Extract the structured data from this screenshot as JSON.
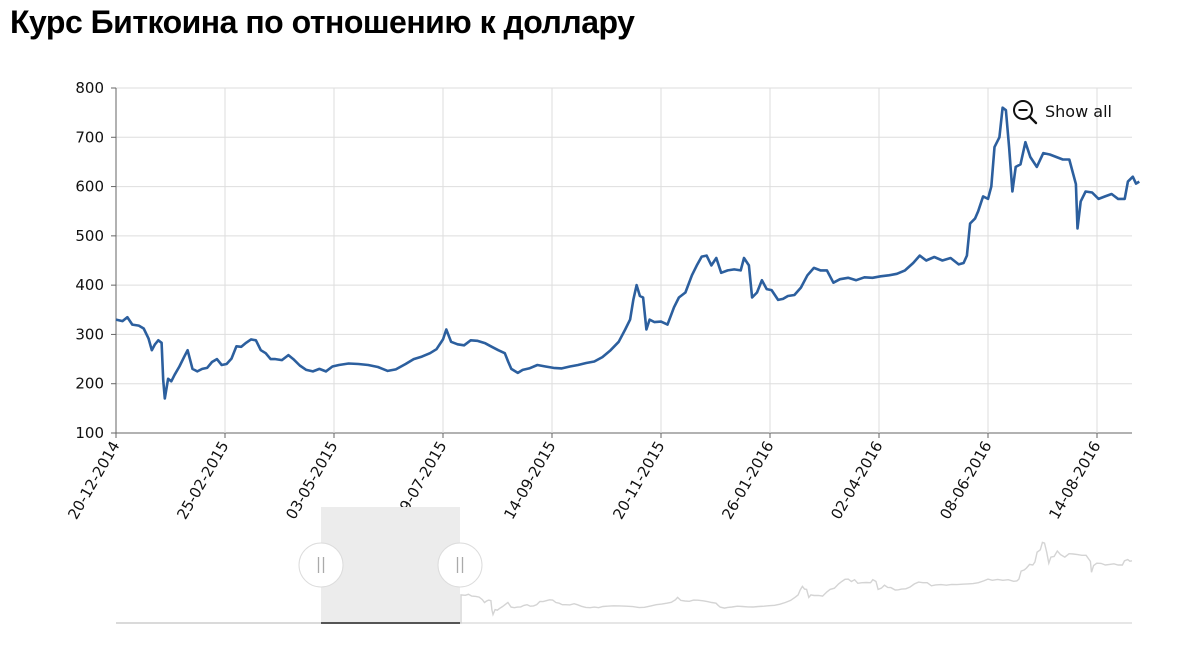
{
  "page": {
    "title": "Курс Биткоина по отношению к доллару"
  },
  "controls": {
    "show_all_label": "Show all",
    "show_all_icon": "zoom-out-icon",
    "handle_icon": "drag-grip-icon"
  },
  "colors": {
    "line": "#2c5f9e",
    "grid": "#dedede",
    "axis": "#666666",
    "navigator_line": "#d4d4d4",
    "navigator_selection": "#ececec"
  },
  "chart_data": {
    "type": "line",
    "title": "Курс Биткоина по отношению к доллару",
    "xlabel": "",
    "ylabel": "",
    "ylim": [
      100,
      800
    ],
    "y_ticks": [
      100,
      200,
      300,
      400,
      500,
      600,
      700,
      800
    ],
    "x_range": [
      "2014-12-20",
      "2016-09-09"
    ],
    "x_ticks": [
      "20-12-2014",
      "25-02-2015",
      "03-05-2015",
      "09-07-2015",
      "14-09-2015",
      "20-11-2015",
      "26-01-2016",
      "02-04-2016",
      "08-06-2016",
      "14-08-2016"
    ],
    "grid": true,
    "series": [
      {
        "points": [
          [
            "2014-12-20",
            330
          ],
          [
            "2014-12-24",
            327
          ],
          [
            "2014-12-27",
            335
          ],
          [
            "2014-12-30",
            320
          ],
          [
            "2015-01-03",
            318
          ],
          [
            "2015-01-06",
            312
          ],
          [
            "2015-01-09",
            292
          ],
          [
            "2015-01-11",
            268
          ],
          [
            "2015-01-13",
            280
          ],
          [
            "2015-01-15",
            288
          ],
          [
            "2015-01-17",
            283
          ],
          [
            "2015-01-18",
            208
          ],
          [
            "2015-01-19",
            170
          ],
          [
            "2015-01-21",
            210
          ],
          [
            "2015-01-23",
            205
          ],
          [
            "2015-01-25",
            218
          ],
          [
            "2015-01-28",
            235
          ],
          [
            "2015-01-31",
            255
          ],
          [
            "2015-02-02",
            268
          ],
          [
            "2015-02-05",
            230
          ],
          [
            "2015-02-08",
            225
          ],
          [
            "2015-02-11",
            230
          ],
          [
            "2015-02-14",
            232
          ],
          [
            "2015-02-17",
            244
          ],
          [
            "2015-02-20",
            250
          ],
          [
            "2015-02-23",
            238
          ],
          [
            "2015-02-26",
            240
          ],
          [
            "2015-03-01",
            251
          ],
          [
            "2015-03-04",
            276
          ],
          [
            "2015-03-07",
            275
          ],
          [
            "2015-03-10",
            283
          ],
          [
            "2015-03-13",
            290
          ],
          [
            "2015-03-16",
            288
          ],
          [
            "2015-03-19",
            268
          ],
          [
            "2015-03-22",
            262
          ],
          [
            "2015-03-25",
            250
          ],
          [
            "2015-03-28",
            250
          ],
          [
            "2015-04-01",
            248
          ],
          [
            "2015-04-05",
            258
          ],
          [
            "2015-04-08",
            250
          ],
          [
            "2015-04-12",
            237
          ],
          [
            "2015-04-16",
            228
          ],
          [
            "2015-04-20",
            225
          ],
          [
            "2015-04-24",
            230
          ],
          [
            "2015-04-28",
            225
          ],
          [
            "2015-05-02",
            235
          ],
          [
            "2015-05-06",
            238
          ],
          [
            "2015-05-12",
            241
          ],
          [
            "2015-05-18",
            240
          ],
          [
            "2015-05-24",
            238
          ],
          [
            "2015-05-30",
            234
          ],
          [
            "2015-06-05",
            226
          ],
          [
            "2015-06-10",
            229
          ],
          [
            "2015-06-16",
            240
          ],
          [
            "2015-06-21",
            250
          ],
          [
            "2015-06-26",
            255
          ],
          [
            "2015-07-01",
            262
          ],
          [
            "2015-07-05",
            270
          ],
          [
            "2015-07-09",
            290
          ],
          [
            "2015-07-11",
            310
          ],
          [
            "2015-07-14",
            285
          ],
          [
            "2015-07-18",
            280
          ],
          [
            "2015-07-22",
            278
          ],
          [
            "2015-07-26",
            288
          ],
          [
            "2015-07-30",
            287
          ],
          [
            "2015-08-04",
            282
          ],
          [
            "2015-08-08",
            275
          ],
          [
            "2015-08-12",
            268
          ],
          [
            "2015-08-16",
            262
          ],
          [
            "2015-08-18",
            245
          ],
          [
            "2015-08-20",
            230
          ],
          [
            "2015-08-24",
            222
          ],
          [
            "2015-08-27",
            228
          ],
          [
            "2015-08-31",
            231
          ],
          [
            "2015-09-05",
            238
          ],
          [
            "2015-09-10",
            235
          ],
          [
            "2015-09-15",
            232
          ],
          [
            "2015-09-20",
            231
          ],
          [
            "2015-09-25",
            235
          ],
          [
            "2015-09-30",
            238
          ],
          [
            "2015-10-05",
            242
          ],
          [
            "2015-10-10",
            245
          ],
          [
            "2015-10-15",
            254
          ],
          [
            "2015-10-20",
            268
          ],
          [
            "2015-10-25",
            285
          ],
          [
            "2015-10-29",
            310
          ],
          [
            "2015-11-01",
            330
          ],
          [
            "2015-11-03",
            370
          ],
          [
            "2015-11-05",
            400
          ],
          [
            "2015-11-07",
            378
          ],
          [
            "2015-11-09",
            375
          ],
          [
            "2015-11-11",
            310
          ],
          [
            "2015-11-13",
            330
          ],
          [
            "2015-11-16",
            325
          ],
          [
            "2015-11-20",
            326
          ],
          [
            "2015-11-24",
            320
          ],
          [
            "2015-11-28",
            355
          ],
          [
            "2015-12-01",
            375
          ],
          [
            "2015-12-05",
            385
          ],
          [
            "2015-12-09",
            420
          ],
          [
            "2015-12-12",
            440
          ],
          [
            "2015-12-15",
            458
          ],
          [
            "2015-12-18",
            460
          ],
          [
            "2015-12-21",
            440
          ],
          [
            "2015-12-24",
            455
          ],
          [
            "2015-12-27",
            425
          ],
          [
            "2015-12-31",
            430
          ],
          [
            "2016-01-04",
            432
          ],
          [
            "2016-01-08",
            430
          ],
          [
            "2016-01-10",
            455
          ],
          [
            "2016-01-13",
            440
          ],
          [
            "2016-01-15",
            375
          ],
          [
            "2016-01-18",
            385
          ],
          [
            "2016-01-21",
            410
          ],
          [
            "2016-01-24",
            392
          ],
          [
            "2016-01-27",
            390
          ],
          [
            "2016-01-31",
            370
          ],
          [
            "2016-02-03",
            372
          ],
          [
            "2016-02-06",
            378
          ],
          [
            "2016-02-10",
            380
          ],
          [
            "2016-02-14",
            395
          ],
          [
            "2016-02-18",
            420
          ],
          [
            "2016-02-22",
            435
          ],
          [
            "2016-02-26",
            430
          ],
          [
            "2016-03-01",
            430
          ],
          [
            "2016-03-05",
            405
          ],
          [
            "2016-03-09",
            412
          ],
          [
            "2016-03-14",
            415
          ],
          [
            "2016-03-19",
            410
          ],
          [
            "2016-03-24",
            416
          ],
          [
            "2016-03-29",
            415
          ],
          [
            "2016-04-03",
            418
          ],
          [
            "2016-04-08",
            420
          ],
          [
            "2016-04-13",
            423
          ],
          [
            "2016-04-18",
            430
          ],
          [
            "2016-04-23",
            445
          ],
          [
            "2016-04-27",
            460
          ],
          [
            "2016-05-01",
            450
          ],
          [
            "2016-05-06",
            457
          ],
          [
            "2016-05-11",
            450
          ],
          [
            "2016-05-16",
            455
          ],
          [
            "2016-05-21",
            442
          ],
          [
            "2016-05-24",
            445
          ],
          [
            "2016-05-26",
            460
          ],
          [
            "2016-05-28",
            525
          ],
          [
            "2016-05-31",
            535
          ],
          [
            "2016-06-02",
            550
          ],
          [
            "2016-06-05",
            580
          ],
          [
            "2016-06-08",
            575
          ],
          [
            "2016-06-10",
            600
          ],
          [
            "2016-06-12",
            680
          ],
          [
            "2016-06-15",
            700
          ],
          [
            "2016-06-17",
            760
          ],
          [
            "2016-06-19",
            755
          ],
          [
            "2016-06-21",
            680
          ],
          [
            "2016-06-23",
            590
          ],
          [
            "2016-06-25",
            640
          ],
          [
            "2016-06-28",
            645
          ],
          [
            "2016-07-01",
            690
          ],
          [
            "2016-07-04",
            660
          ],
          [
            "2016-07-08",
            640
          ],
          [
            "2016-07-12",
            668
          ],
          [
            "2016-07-16",
            665
          ],
          [
            "2016-07-20",
            660
          ],
          [
            "2016-07-24",
            655
          ],
          [
            "2016-07-28",
            655
          ],
          [
            "2016-08-01",
            605
          ],
          [
            "2016-08-02",
            515
          ],
          [
            "2016-08-04",
            570
          ],
          [
            "2016-08-07",
            590
          ],
          [
            "2016-08-11",
            588
          ],
          [
            "2016-08-15",
            575
          ],
          [
            "2016-08-19",
            580
          ],
          [
            "2016-08-23",
            585
          ],
          [
            "2016-08-27",
            575
          ],
          [
            "2016-08-31",
            575
          ],
          [
            "2016-09-02",
            610
          ],
          [
            "2016-09-05",
            620
          ],
          [
            "2016-09-07",
            606
          ],
          [
            "2016-09-09",
            610
          ]
        ]
      }
    ]
  }
}
